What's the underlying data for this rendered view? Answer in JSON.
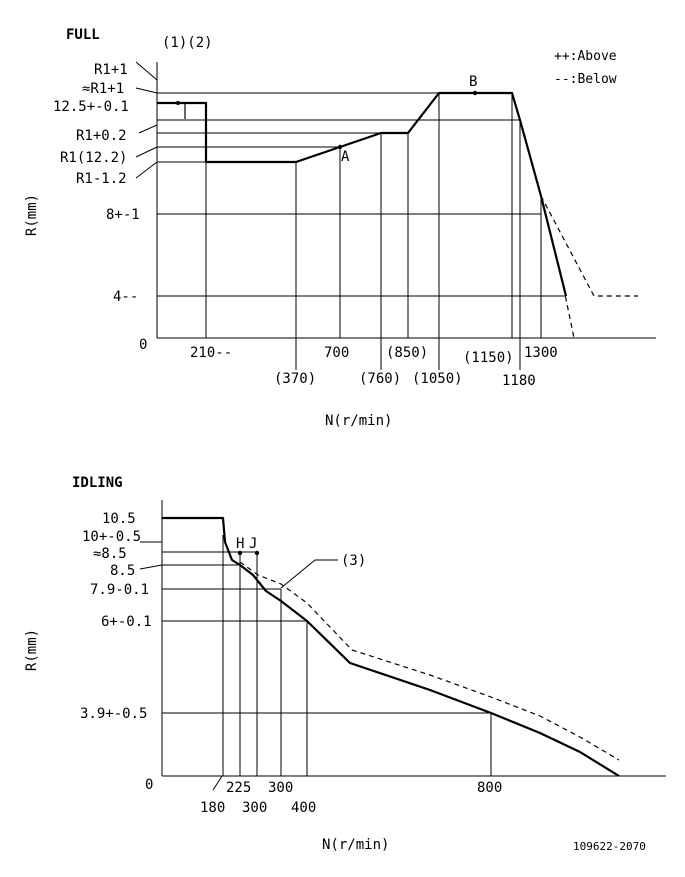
{
  "full_chart": {
    "title": "FULL",
    "note": "(1)(2)",
    "legend_above": "++:Above",
    "legend_below": "--:Below",
    "y_axis_label": "R(mm)",
    "x_axis_label": "N(r/min)",
    "origin": "0",
    "y_labels": {
      "r1_plus_1": "R1+1",
      "approx_r1_plus_1": "≈R1+1",
      "r12_5": "12.5+-0.1",
      "r1_plus_0_2": "R1+0.2",
      "r1_12_2": "R1(12.2)",
      "r1_minus_1_2": "R1-1.2",
      "r8": "8+-1",
      "r4": "4--"
    },
    "x_labels": {
      "n210": "210--",
      "n370": "(370)",
      "n700": "700",
      "n760": "(760)",
      "n850": "(850)",
      "n1050": "(1050)",
      "n1150": "(1150)",
      "n1180": "1180",
      "n1300": "1300"
    },
    "points": {
      "a": "A",
      "b": "B"
    }
  },
  "idling_chart": {
    "title": "IDLING",
    "y_axis_label": "R(mm)",
    "x_axis_label": "N(r/min)",
    "origin": "0",
    "note": "(3)",
    "y_labels": {
      "r10_5": "10.5",
      "r10": "10+-0.5",
      "approx_r8_5": "≈8.5",
      "r8_5": "8.5",
      "r7_9": "7.9-0.1",
      "r6": "6+-0.1",
      "r3_9": "3.9+-0.5"
    },
    "x_labels": {
      "n180": "180",
      "n225": "225",
      "n300a": "300",
      "n300b": "300",
      "n400": "400",
      "n800": "800"
    },
    "points": {
      "h": "H",
      "j": "J"
    }
  },
  "figure_code": "109622-2070"
}
